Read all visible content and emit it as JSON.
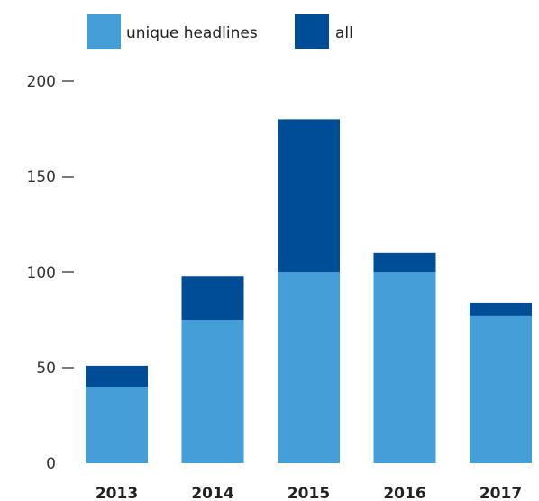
{
  "chart_data": {
    "type": "bar",
    "stacked": true,
    "categories": [
      "2013",
      "2014",
      "2015",
      "2016",
      "2017"
    ],
    "series": [
      {
        "name": "unique headlines",
        "color": "#449ed8",
        "values": [
          40,
          75,
          100,
          100,
          77
        ]
      },
      {
        "name": "all",
        "color": "#004d97",
        "values": [
          51,
          98,
          180,
          110,
          84
        ]
      }
    ],
    "ylim": [
      0,
      200
    ],
    "yticks": [
      0,
      50,
      100,
      150,
      200
    ],
    "grid": false,
    "legend_position": "top",
    "xlabel": "",
    "ylabel": "",
    "title": ""
  }
}
